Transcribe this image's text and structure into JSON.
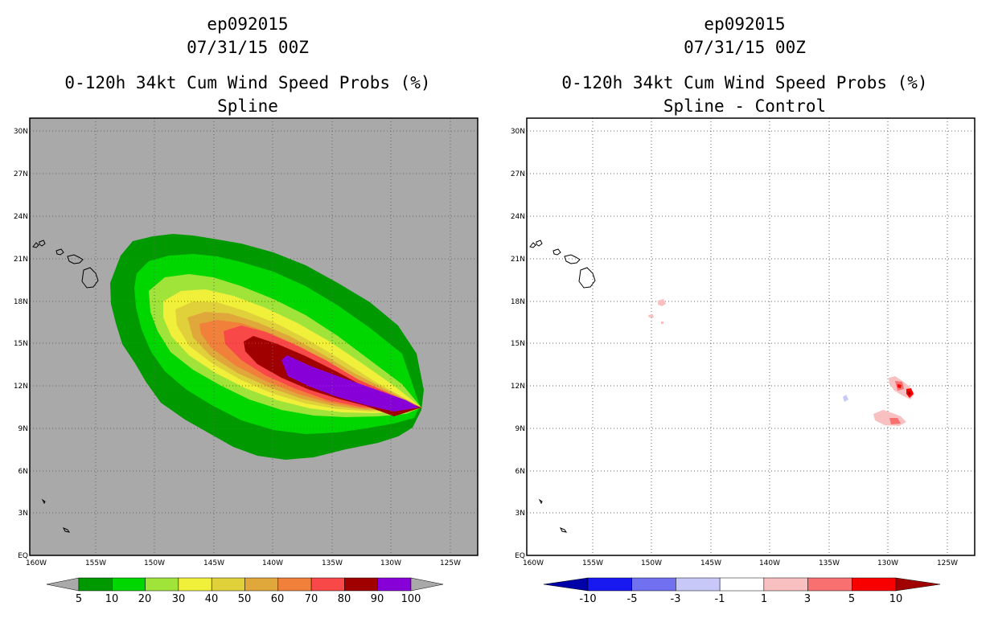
{
  "left_panel": {
    "storm_id": "ep092015",
    "datetime": "07/31/15 00Z",
    "product": "0-120h 34kt Cum Wind Speed Probs (%)",
    "subtitle": "Spline",
    "background_color": "#a9a9a9",
    "colorbar": {
      "labels": [
        "5",
        "10",
        "20",
        "30",
        "40",
        "50",
        "60",
        "70",
        "80",
        "90",
        "100"
      ],
      "colors": [
        "#009900",
        "#00d600",
        "#a0e43a",
        "#f0f03a",
        "#e0d03a",
        "#e0a83a",
        "#f0803a",
        "#f84848",
        "#a00000",
        "#8800d8"
      ]
    }
  },
  "right_panel": {
    "storm_id": "ep092015",
    "datetime": "07/31/15 00Z",
    "product": "0-120h 34kt Cum Wind Speed Probs (%)",
    "subtitle": "Spline - Control",
    "colorbar": {
      "labels": [
        "-10",
        "-5",
        "-3",
        "-1",
        "1",
        "3",
        "5",
        "10"
      ],
      "colors": [
        "#0000a8",
        "#1818f0",
        "#7070f0",
        "#c8c8f8",
        "#ffffff",
        "#f8c0c0",
        "#f87070",
        "#f80000",
        "#a00000"
      ]
    }
  },
  "axes": {
    "lat_labels": [
      "30N",
      "27N",
      "24N",
      "21N",
      "18N",
      "15N",
      "12N",
      "9N",
      "6N",
      "3N",
      "EQ"
    ],
    "lon_labels": [
      "160W",
      "155W",
      "150W",
      "145W",
      "140W",
      "135W",
      "130W",
      "125W"
    ]
  }
}
